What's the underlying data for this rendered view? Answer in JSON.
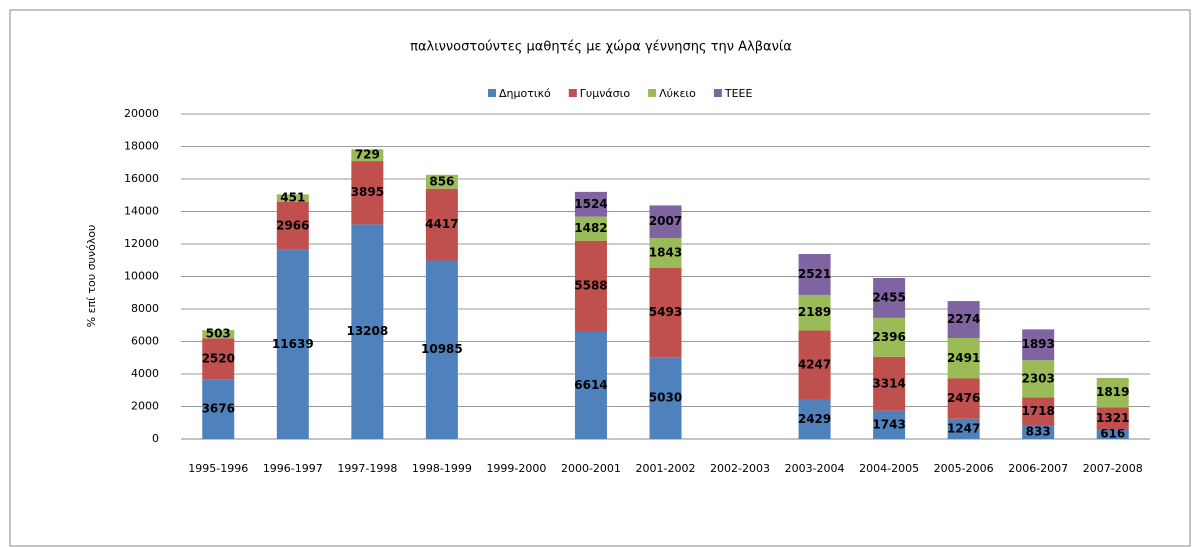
{
  "chart_data": {
    "type": "stacked_bar",
    "title": "παλιννοστούντες μαθητές με χώρα γέννησης την Αλβανία",
    "y_label": "% επί του συνόλου",
    "categories": [
      "1995-1996",
      "1996-1997",
      "1997-1998",
      "1998-1999",
      "1999-2000",
      "2000-2001",
      "2001-2002",
      "2002-2003",
      "2003-2004",
      "2004-2005",
      "2005-2006",
      "2006-2007",
      "2007-2008"
    ],
    "series": [
      {
        "name": "Δημοτικό",
        "color": "#4f81bd",
        "values": [
          3676,
          11639,
          13208,
          10985,
          null,
          6614,
          5030,
          null,
          2429,
          1743,
          1247,
          833,
          616
        ]
      },
      {
        "name": "Γυμνάσιο",
        "color": "#c0504d",
        "values": [
          2520,
          2966,
          3895,
          4417,
          null,
          5588,
          5493,
          null,
          4247,
          3314,
          2476,
          1718,
          1321
        ]
      },
      {
        "name": "Λύκειο",
        "color": "#9bbb59",
        "values": [
          503,
          451,
          729,
          856,
          null,
          1482,
          1843,
          null,
          2189,
          2396,
          2491,
          2303,
          1819
        ]
      },
      {
        "name": "ΤΕΕΕ",
        "color": "#8064a2",
        "values": [
          null,
          null,
          null,
          null,
          null,
          1524,
          2007,
          null,
          2521,
          2455,
          2274,
          1893,
          null
        ]
      }
    ],
    "ylim": [
      0,
      20000
    ],
    "yticks": [
      0,
      2000,
      4000,
      6000,
      8000,
      10000,
      12000,
      14000,
      16000,
      18000,
      20000
    ],
    "grid": true,
    "legend": "top"
  }
}
